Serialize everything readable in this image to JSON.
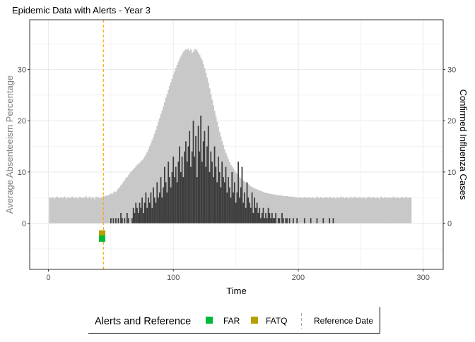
{
  "chart_data": {
    "type": "bar",
    "title": "Epidemic Data with Alerts - Year 3",
    "xlabel": "Time",
    "ylabel_left": "Average Absenteeism Percentage",
    "ylabel_right": "Confirmed Influenza Cases",
    "xlim": [
      -15,
      316
    ],
    "ylim": [
      -9,
      39.7
    ],
    "x_ticks": [
      0,
      100,
      200,
      300
    ],
    "y_ticks": [
      0,
      10,
      20,
      30
    ],
    "y_ticks_right": [
      0,
      10,
      20,
      30
    ],
    "grid": true,
    "colors": {
      "absenteeism": "#c8c8c8",
      "cases": "#3d3d3d",
      "FAR": "#00ba38",
      "FATQ": "#b79f00",
      "reference": "#ffa500"
    },
    "days_start": 1,
    "absenteeism": [
      5.0,
      4.9,
      5.1,
      5.0,
      4.8,
      5.1,
      5.2,
      4.9,
      5.0,
      5.1,
      4.9,
      5.0,
      5.2,
      4.8,
      5.0,
      5.1,
      4.9,
      5.0,
      5.2,
      5.0,
      4.9,
      5.1,
      5.0,
      4.8,
      5.2,
      5.0,
      4.9,
      5.1,
      5.0,
      5.3,
      4.9,
      5.0,
      5.2,
      4.8,
      5.1,
      5.0,
      4.7,
      5.2,
      5.0,
      5.1,
      4.9,
      5.0,
      5.1,
      5.3,
      5.2,
      5.4,
      5.3,
      5.5,
      5.6,
      5.8,
      5.7,
      6.0,
      6.2,
      6.1,
      6.5,
      6.8,
      7.0,
      7.4,
      7.7,
      8.1,
      8.4,
      8.8,
      9.0,
      9.4,
      9.7,
      10.0,
      10.3,
      10.5,
      10.8,
      11.1,
      11.4,
      11.6,
      11.8,
      12.1,
      12.3,
      12.6,
      13.0,
      13.4,
      13.9,
      14.4,
      15.0,
      15.6,
      16.2,
      16.8,
      17.5,
      18.2,
      19.0,
      19.8,
      20.5,
      21.3,
      22.0,
      22.8,
      23.6,
      24.5,
      25.2,
      26.0,
      26.8,
      27.5,
      28.2,
      29.0,
      29.6,
      30.3,
      30.9,
      31.5,
      32.0,
      32.5,
      33.0,
      33.5,
      33.7,
      34.0,
      33.8,
      34.1,
      33.6,
      33.9,
      33.2,
      33.5,
      33.9,
      34.0,
      33.6,
      33.2,
      32.8,
      32.3,
      31.8,
      31.0,
      30.2,
      29.3,
      28.4,
      27.4,
      26.3,
      25.2,
      24.1,
      23.0,
      21.9,
      20.8,
      19.8,
      18.8,
      17.8,
      16.9,
      16.0,
      15.2,
      14.4,
      13.7,
      13.1,
      12.5,
      11.9,
      11.4,
      11.0,
      10.6,
      10.2,
      9.9,
      9.6,
      9.3,
      9.0,
      8.8,
      8.5,
      8.3,
      8.1,
      7.9,
      7.7,
      7.6,
      7.4,
      7.2,
      7.1,
      6.9,
      6.8,
      6.7,
      6.6,
      6.5,
      6.4,
      6.3,
      6.2,
      6.1,
      6.0,
      5.9,
      5.9,
      5.8,
      5.8,
      5.7,
      5.7,
      5.6,
      5.6,
      5.5,
      5.5,
      5.5,
      5.4,
      5.4,
      5.4,
      5.3,
      5.3,
      5.3,
      5.3,
      5.2,
      5.2,
      5.2,
      5.2,
      5.1,
      5.1,
      5.1,
      5.0,
      5.0,
      5.0,
      5.1,
      4.9,
      5.0,
      5.1,
      5.0,
      4.9,
      5.1,
      5.0,
      4.9,
      5.1,
      5.0,
      4.8,
      5.0,
      5.2,
      5.0,
      4.9,
      5.1,
      5.0,
      4.9,
      5.0,
      5.1,
      5.0,
      4.9,
      5.2,
      5.0,
      4.9,
      5.1,
      5.0,
      4.8,
      5.1,
      5.0,
      4.9,
      5.2,
      5.0,
      5.1,
      4.9,
      5.0,
      5.1,
      4.8,
      5.0,
      5.1,
      5.0,
      4.9,
      5.2,
      5.0,
      4.9,
      5.1,
      5.0,
      5.0,
      4.9,
      5.1,
      5.0,
      4.8,
      5.1,
      5.0,
      5.2,
      4.9,
      5.0,
      5.1,
      5.0,
      4.9,
      5.1,
      5.0,
      4.8,
      5.2,
      5.0,
      4.9,
      5.1,
      5.0,
      5.0,
      4.9,
      5.1,
      5.0,
      4.9,
      5.2,
      5.0,
      4.9,
      5.1,
      5.0,
      4.9,
      5.0,
      5.1,
      5.0,
      4.9,
      5.2,
      5.0,
      4.9,
      5.1,
      5.0
    ],
    "cases": [
      0,
      0,
      0,
      0,
      0,
      0,
      0,
      0,
      0,
      0,
      0,
      0,
      0,
      0,
      0,
      0,
      0,
      0,
      0,
      0,
      0,
      0,
      0,
      0,
      0,
      0,
      0,
      0,
      0,
      0,
      0,
      0,
      0,
      0,
      0,
      0,
      0,
      0,
      0,
      0,
      0,
      0,
      0,
      0,
      0,
      0,
      0,
      0,
      0,
      1,
      0,
      1,
      0,
      1,
      0,
      1,
      0,
      2,
      1,
      0,
      1,
      0,
      2,
      1,
      0,
      0,
      1,
      3,
      2,
      4,
      3,
      2,
      4,
      3,
      5,
      2,
      4,
      6,
      3,
      5,
      4,
      6,
      3,
      7,
      5,
      4,
      8,
      5,
      6,
      9,
      5,
      7,
      11,
      8,
      6,
      12,
      9,
      7,
      10,
      13,
      9,
      11,
      8,
      12,
      15,
      10,
      13,
      9,
      14,
      16,
      12,
      15,
      18,
      11,
      14,
      20,
      13,
      17,
      9,
      19,
      14,
      21,
      12,
      16,
      18,
      11,
      15,
      19,
      10,
      14,
      12,
      9,
      15,
      11,
      8,
      13,
      10,
      7,
      12,
      9,
      8,
      11,
      6,
      9,
      7,
      5,
      10,
      6,
      8,
      4,
      6,
      12,
      5,
      7,
      11,
      4,
      6,
      3,
      8,
      5,
      4,
      3,
      6,
      2,
      5,
      3,
      4,
      2,
      3,
      1,
      2,
      3,
      1,
      2,
      1,
      3,
      2,
      1,
      2,
      1,
      1,
      2,
      0,
      1,
      1,
      0,
      2,
      1,
      0,
      1,
      1,
      0,
      1,
      0,
      0,
      1,
      0,
      0,
      1,
      0,
      0,
      0,
      0,
      0,
      1,
      0,
      0,
      0,
      0,
      1,
      0,
      0,
      0,
      0,
      1,
      0,
      0,
      0,
      0,
      1,
      0,
      0,
      0,
      0,
      1,
      0,
      0,
      1,
      0,
      0,
      0,
      0,
      0,
      0,
      0,
      0,
      0,
      0,
      0,
      0,
      0,
      0,
      0,
      0,
      0,
      0,
      0,
      0,
      0,
      0,
      0,
      0,
      0,
      0,
      0,
      0,
      0,
      0,
      0,
      0,
      0,
      0,
      0,
      0,
      0,
      0,
      0,
      0,
      0,
      0,
      0,
      0,
      0,
      0,
      0,
      0,
      0,
      0,
      0,
      0,
      0,
      0,
      0,
      0,
      0,
      0,
      0,
      0,
      0,
      0,
      0,
      0,
      0,
      0,
      0,
      0,
      0,
      0,
      0,
      0,
      0,
      0,
      0,
      0,
      0,
      0,
      0,
      0,
      0,
      0,
      0,
      0,
      0,
      0
    ],
    "alerts": [
      {
        "name": "FATQ",
        "x": 43,
        "y": -2
      },
      {
        "name": "FAR",
        "x": 43,
        "y": -3
      }
    ],
    "reference_date": 44,
    "legend": {
      "title": "Alerts and Reference",
      "placement": "bottom",
      "items": [
        {
          "label": "FAR",
          "kind": "square",
          "color": "#00ba38"
        },
        {
          "label": "FATQ",
          "kind": "square",
          "color": "#b79f00"
        },
        {
          "label": "Reference Date",
          "kind": "dashed-line",
          "color": "#aaaaaa"
        }
      ]
    }
  }
}
